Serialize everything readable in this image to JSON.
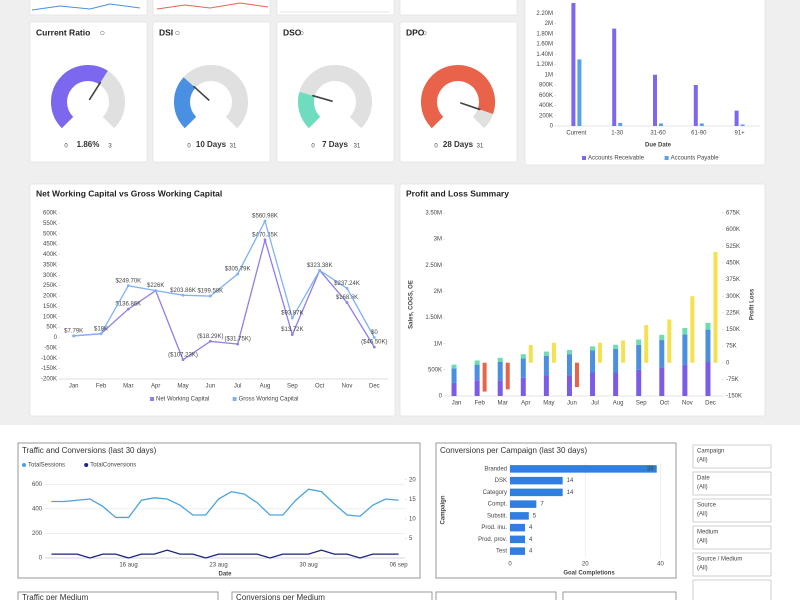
{
  "chart_data": [
    {
      "type": "gauge",
      "title": "Current Ratio",
      "value": 1.86,
      "value_label": "1.86%",
      "ylim": [
        0,
        3
      ],
      "color": "#7b68ee"
    },
    {
      "type": "gauge",
      "title": "DSI",
      "value": 10,
      "value_label": "10 Days",
      "ylim": [
        0,
        31
      ],
      "color": "#4a90e2"
    },
    {
      "type": "gauge",
      "title": "DSO",
      "value": 7,
      "value_label": "7 Days",
      "ylim": [
        0,
        31
      ],
      "color": "#6fdcbf"
    },
    {
      "type": "gauge",
      "title": "DPO",
      "value": 28,
      "value_label": "28 Days",
      "ylim": [
        0,
        31
      ],
      "color": "#e8634a"
    },
    {
      "type": "bar",
      "x_label": "Due Date",
      "categories": [
        "Current",
        "1-30",
        "31-60",
        "61-90",
        "91+"
      ],
      "series": [
        {
          "name": "Accounts Receivable",
          "color": "#7b68ee",
          "values": [
            2400000,
            1900000,
            1000000,
            800000,
            300000
          ]
        },
        {
          "name": "Accounts Payable",
          "color": "#5aa0ef",
          "values": [
            1300000,
            60000,
            50000,
            50000,
            30000
          ]
        }
      ],
      "ylim": [
        0,
        2400000
      ],
      "yticks": [
        0,
        {
          "value": 200000,
          "label": "200K"
        },
        {
          "value": 400000,
          "label": "400K"
        },
        {
          "value": 600000,
          "label": "600K"
        },
        {
          "value": 800000,
          "label": "800K"
        },
        {
          "value": 1000000,
          "label": "1M"
        },
        {
          "value": 1200000,
          "label": "1.20M"
        },
        {
          "value": 1400000,
          "label": "1.40M"
        },
        {
          "value": 1600000,
          "label": "1.60M"
        },
        {
          "value": 1800000,
          "label": "1.80M"
        },
        {
          "value": 2000000,
          "label": "2M"
        },
        {
          "value": 2200000,
          "label": "2.20M"
        }
      ],
      "grid": false,
      "legend": "bottom"
    },
    {
      "type": "line",
      "title": "Net Working Capital vs Gross Working Capital",
      "categories": [
        "Jan",
        "Feb",
        "Mar",
        "Apr",
        "May",
        "Jun",
        "Jul",
        "Aug",
        "Sep",
        "Oct",
        "Nov",
        "Dec"
      ],
      "series": [
        {
          "name": "Net Working Capital",
          "color": "#8f7fe8",
          "values": [
            7790,
            18000,
            136860,
            226000,
            -107230,
            -18290,
            -31750,
            470350,
            13720,
            323380,
            168600,
            -46500
          ],
          "value_labels": [
            null,
            null,
            "$136.86K",
            null,
            "($107.23K)",
            "($18.29K)",
            "($31.75K)",
            "$470.35K",
            "$13.72K",
            null,
            "$168.6K",
            "($46.50K)"
          ]
        },
        {
          "name": "Gross Working Capital",
          "color": "#7fb2f0",
          "values": [
            7790,
            18000,
            249700,
            226000,
            203860,
            199580,
            305790,
            560980,
            93870,
            323380,
            237240,
            0
          ],
          "value_labels": [
            "$7.79K",
            "$18K",
            "$249.70K",
            "$226K",
            "$203.86K",
            "$199.58K",
            "$305.79K",
            "$560.98K",
            "$93.87K",
            "$323.38K",
            "$237.24K",
            "$0"
          ]
        }
      ],
      "ylim": [
        -200000,
        600000
      ],
      "yticks": [
        {
          "value": -200000,
          "label": "-200K"
        },
        {
          "value": -150000,
          "label": "-150K"
        },
        {
          "value": -100000,
          "label": "-100K"
        },
        {
          "value": -50000,
          "label": "-50K"
        },
        0,
        {
          "value": 50000,
          "label": "50K"
        },
        {
          "value": 100000,
          "label": "100K"
        },
        {
          "value": 150000,
          "label": "150K"
        },
        {
          "value": 200000,
          "label": "200K"
        },
        {
          "value": 250000,
          "label": "250K"
        },
        {
          "value": 300000,
          "label": "300K"
        },
        {
          "value": 350000,
          "label": "350K"
        },
        {
          "value": 400000,
          "label": "400K"
        },
        {
          "value": 450000,
          "label": "450K"
        },
        {
          "value": 500000,
          "label": "500K"
        },
        {
          "value": 550000,
          "label": "550K"
        },
        {
          "value": 600000,
          "label": "600K"
        }
      ],
      "grid": false,
      "markers": true,
      "legend": "bottom"
    },
    {
      "type": "bar",
      "title": "Profit and Loss Summary",
      "y_label": "Sales, COGS, OE",
      "y2_label": "Profit Loss",
      "stacked": true,
      "categories": [
        "Jan",
        "Feb",
        "Mar",
        "Apr",
        "May",
        "Jun",
        "Jul",
        "Aug",
        "Sep",
        "Oct",
        "Nov",
        "Dec"
      ],
      "series": [
        {
          "color": "#7b5ce6",
          "values": [
            250000,
            300000,
            300000,
            350000,
            400000,
            400000,
            450000,
            450000,
            500000,
            550000,
            600000,
            650000
          ]
        },
        {
          "color": "#4a8fe0",
          "values": [
            280000,
            300000,
            350000,
            370000,
            370000,
            400000,
            420000,
            450000,
            480000,
            520000,
            580000,
            620000
          ]
        },
        {
          "color": "#6edcb0",
          "values": [
            70000,
            80000,
            80000,
            80000,
            80000,
            80000,
            80000,
            80000,
            100000,
            100000,
            120000,
            130000
          ]
        },
        {
          "axis": "y2",
          "color": "#f5e050",
          "negative_color": "#e8634a",
          "values": [
            null,
            -130000,
            -120000,
            80000,
            90000,
            -110000,
            90000,
            100000,
            170000,
            195000,
            300000,
            500000
          ]
        }
      ],
      "ylim": [
        0,
        3500000
      ],
      "yticks": [
        0,
        {
          "value": 500000,
          "label": "500K"
        },
        {
          "value": 1000000,
          "label": "1M"
        },
        {
          "value": 1500000,
          "label": "1.50M"
        },
        {
          "value": 2000000,
          "label": "2M"
        },
        {
          "value": 2500000,
          "label": "2.50M"
        },
        {
          "value": 3000000,
          "label": "3M"
        },
        {
          "value": 3500000,
          "label": "3.50M"
        }
      ],
      "y2lim": [
        -150000,
        675000
      ],
      "y2ticks": [
        {
          "value": -150000,
          "label": "-150K"
        },
        {
          "value": -75000,
          "label": "-75K"
        },
        0,
        {
          "value": 75000,
          "label": "75K"
        },
        {
          "value": 150000,
          "label": "150K"
        },
        {
          "value": 225000,
          "label": "225K"
        },
        {
          "value": 300000,
          "label": "300K"
        },
        {
          "value": 375000,
          "label": "375K"
        },
        {
          "value": 450000,
          "label": "450K"
        },
        {
          "value": 525000,
          "label": "525K"
        },
        {
          "value": 600000,
          "label": "600K"
        },
        {
          "value": 675000,
          "label": "675K"
        }
      ],
      "grid": false
    },
    {
      "type": "line",
      "title": "Traffic and Conversions (last 30 days)",
      "x_label": "Date",
      "categories": [
        null,
        null,
        null,
        null,
        null,
        null,
        "16 aug",
        null,
        null,
        null,
        null,
        null,
        null,
        "23 aug",
        null,
        null,
        null,
        null,
        null,
        null,
        "30 aug",
        null,
        null,
        null,
        null,
        null,
        null,
        "06 sep"
      ],
      "series": [
        {
          "name": "TotalSessions",
          "color": "#4aa3df",
          "values": [
            460,
            460,
            470,
            480,
            420,
            330,
            330,
            470,
            490,
            480,
            430,
            350,
            350,
            480,
            540,
            520,
            450,
            350,
            350,
            470,
            560,
            540,
            440,
            350,
            340,
            430,
            480,
            470
          ]
        },
        {
          "name": "TotalConversions",
          "axis": "y2",
          "color": "#1a237e",
          "values": [
            1,
            1,
            1,
            0,
            1,
            1,
            0,
            1,
            1,
            2,
            1,
            1,
            0,
            1,
            1,
            1,
            1,
            0,
            1,
            1,
            1,
            2,
            1,
            1,
            0,
            1,
            1,
            1
          ]
        }
      ],
      "ylim": [
        0,
        700
      ],
      "yticks": [
        0,
        200,
        400,
        600
      ],
      "y2lim": [
        0,
        22
      ],
      "y2ticks": [
        5,
        10,
        15,
        20
      ],
      "grid": true,
      "markers": false,
      "legend": "top-left"
    },
    {
      "type": "hbar",
      "title": "Conversions per Campaign (last 30 days)",
      "x_label": "Goal Completions",
      "y_label": "Campaign",
      "categories": [
        "Branded",
        "DSK",
        "Category",
        "Compt.",
        "Substit.",
        "Prod. inu.",
        "Prod. prov.",
        "Test"
      ],
      "values": [
        39,
        14,
        14,
        7,
        5,
        4,
        4,
        4
      ],
      "color": "#2f7ee0",
      "xlim": [
        0,
        42
      ],
      "xticks": [
        0,
        20,
        40
      ],
      "grid": true
    }
  ],
  "filters": [
    {
      "label": "Campaign",
      "value": "(All)"
    },
    {
      "label": "Date",
      "value": "(All)"
    },
    {
      "label": "Source",
      "value": "(All)"
    },
    {
      "label": "Medium",
      "value": "(All)"
    },
    {
      "label": "Source / Medium",
      "value": "(All)"
    }
  ],
  "panels": [
    "Traffic per Medium",
    "Conversions per Medium"
  ]
}
